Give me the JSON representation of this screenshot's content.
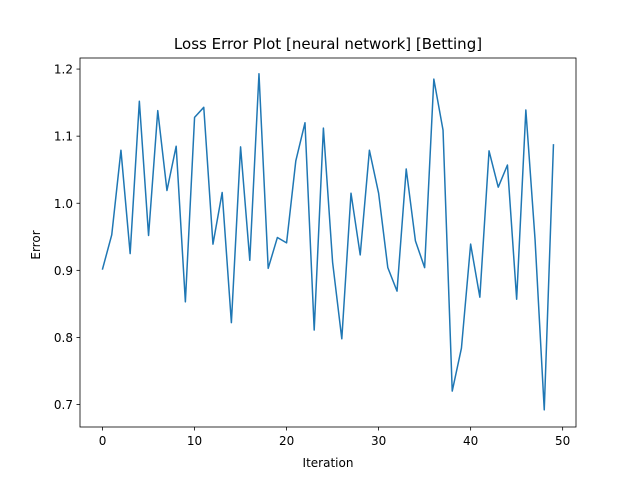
{
  "chart_data": {
    "type": "line",
    "title": "Loss Error Plot [neural network] [Betting]",
    "xlabel": "Iteration",
    "ylabel": "Error",
    "xlim": [
      -2.45,
      51.45
    ],
    "ylim": [
      0.6665,
      1.2165
    ],
    "xticks": [
      0,
      10,
      20,
      30,
      40,
      50
    ],
    "yticks": [
      0.7,
      0.8,
      0.9,
      1.0,
      1.1,
      1.2
    ],
    "ytick_labels": [
      "0.7",
      "0.8",
      "0.9",
      "1.0",
      "1.1",
      "1.2"
    ],
    "grid": false,
    "color": "#1f77b4",
    "series": [
      {
        "x": [
          0,
          1,
          2,
          3,
          4,
          5,
          6,
          7,
          8,
          9,
          10,
          11,
          12,
          13,
          14,
          15,
          16,
          17,
          18,
          19,
          20,
          21,
          22,
          23,
          24,
          25,
          26,
          27,
          28,
          29,
          30,
          31,
          32,
          33,
          34,
          35,
          36,
          37,
          38,
          39,
          40,
          41,
          42,
          43,
          44,
          45,
          46,
          47,
          48,
          49
        ],
        "y": [
          0.902,
          0.953,
          1.079,
          0.925,
          1.152,
          0.952,
          1.138,
          1.019,
          1.085,
          0.853,
          1.128,
          1.143,
          0.939,
          1.016,
          0.822,
          1.084,
          0.915,
          1.193,
          0.903,
          0.949,
          0.941,
          1.063,
          1.12,
          0.811,
          1.112,
          0.912,
          0.798,
          1.015,
          0.923,
          1.079,
          1.015,
          0.904,
          0.869,
          1.051,
          0.944,
          0.904,
          1.185,
          1.109,
          0.72,
          0.784,
          0.939,
          0.86,
          1.078,
          1.024,
          1.057,
          0.857,
          1.139,
          0.946,
          0.692,
          1.087
        ]
      }
    ]
  }
}
